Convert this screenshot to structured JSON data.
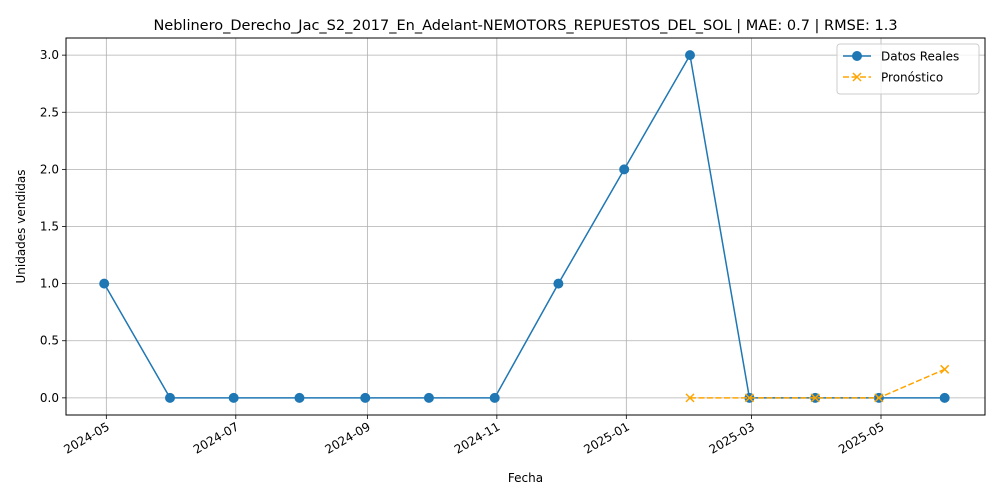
{
  "chart_data": {
    "type": "line",
    "title": "Neblinero_Derecho_Jac_S2_2017_En_Adelant-NEMOTORS_REPUESTOS_DEL_SOL | MAE: 0.7 | RMSE: 1.3",
    "xlabel": "Fecha",
    "ylabel": "Unidades vendidas",
    "ylim": [
      -0.15,
      3.15
    ],
    "xlim": [
      "2024-04-12",
      "2025-06-19"
    ],
    "grid": true,
    "legend_position": "top-right",
    "x_ticks": [
      "2024-05",
      "2024-07",
      "2024-09",
      "2024-11",
      "2025-01",
      "2025-03",
      "2025-05"
    ],
    "y_ticks": [
      "0.0",
      "0.5",
      "1.0",
      "1.5",
      "2.0",
      "2.5",
      "3.0"
    ],
    "series": [
      {
        "name": "Datos Reales",
        "color": "#1f77b4",
        "marker": "circle",
        "line_style": "solid",
        "x": [
          "2024-04-30",
          "2024-05-31",
          "2024-06-30",
          "2024-07-31",
          "2024-08-31",
          "2024-09-30",
          "2024-10-31",
          "2024-11-30",
          "2024-12-31",
          "2025-01-31",
          "2025-02-28",
          "2025-03-31",
          "2025-04-30",
          "2025-05-31"
        ],
        "values": [
          1,
          0,
          0,
          0,
          0,
          0,
          0,
          1,
          2,
          3,
          0,
          0,
          0,
          0
        ]
      },
      {
        "name": "Pronóstico",
        "color": "#ffa500",
        "marker": "x",
        "line_style": "dashed",
        "x": [
          "2025-01-31",
          "2025-02-28",
          "2025-03-31",
          "2025-04-30",
          "2025-05-31"
        ],
        "values": [
          0,
          0,
          0,
          0,
          0.25
        ]
      }
    ]
  }
}
